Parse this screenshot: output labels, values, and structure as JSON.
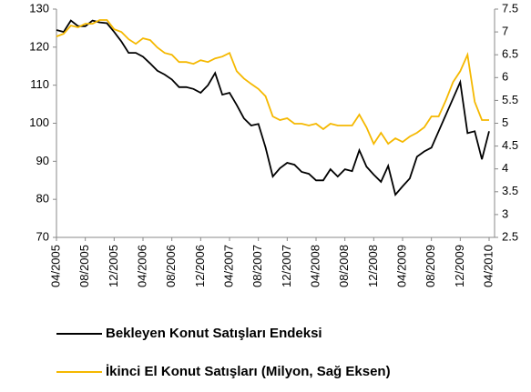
{
  "chart_data": {
    "type": "line",
    "categories": [
      "04/2005",
      null,
      null,
      null,
      "08/2005",
      null,
      null,
      null,
      "12/2005",
      null,
      null,
      null,
      "04/2006",
      null,
      null,
      null,
      "08/2006",
      null,
      null,
      null,
      "12/2006",
      null,
      null,
      null,
      "04/2007",
      null,
      null,
      null,
      "08/2007",
      null,
      null,
      null,
      "12/2007",
      null,
      null,
      null,
      "04/2008",
      null,
      null,
      null,
      "08/2008",
      null,
      null,
      null,
      "12/2008",
      null,
      null,
      null,
      "04/2009",
      null,
      null,
      null,
      "08/2009",
      null,
      null,
      null,
      "12/2009",
      null,
      null,
      null,
      "04/2010"
    ],
    "series": [
      {
        "name": "Bekleyen Konut Satışları Endeksi",
        "color": "#000000",
        "axis": "y",
        "values": [
          124.5,
          124,
          127,
          125.5,
          125.5,
          127,
          126.5,
          126.3,
          124,
          121.5,
          118.5,
          118.5,
          117.5,
          115.7,
          113.8,
          112.8,
          111.5,
          109.5,
          109.5,
          109,
          108,
          110,
          113.2,
          107.5,
          108,
          104.8,
          101.3,
          99.4,
          99.8,
          93.6,
          86,
          88.2,
          89.6,
          89.1,
          87.2,
          86.7,
          85,
          85,
          87.9,
          86,
          87.9,
          87.4,
          92.9,
          88.6,
          86.5,
          84.6,
          88.8,
          81.2,
          83.4,
          85.5,
          91.2,
          92.6,
          93.6,
          97.9,
          102.2,
          106.5,
          110.8,
          97.4,
          97.9,
          90.5,
          97.9
        ]
      },
      {
        "name": "İkinci El Konut Satışları (Milyon, Sağ Eksen)",
        "color": "#f5b800",
        "axis": "y2",
        "values": [
          6.9,
          6.96,
          7.14,
          7.1,
          7.18,
          7.18,
          7.26,
          7.26,
          7.06,
          7.0,
          6.84,
          6.74,
          6.86,
          6.82,
          6.66,
          6.54,
          6.5,
          6.34,
          6.34,
          6.3,
          6.38,
          6.34,
          6.42,
          6.46,
          6.54,
          6.14,
          5.98,
          5.86,
          5.75,
          5.59,
          5.15,
          5.07,
          5.11,
          4.99,
          4.99,
          4.95,
          4.99,
          4.87,
          4.99,
          4.95,
          4.95,
          4.95,
          5.19,
          4.91,
          4.55,
          4.79,
          4.55,
          4.67,
          4.59,
          4.71,
          4.79,
          4.91,
          5.15,
          5.15,
          5.5,
          5.9,
          6.14,
          6.5,
          5.47,
          5.07,
          5.07
        ]
      }
    ],
    "ylim": [
      70,
      130
    ],
    "yticks": [
      70,
      80,
      90,
      100,
      110,
      120,
      130
    ],
    "y2lim": [
      2.5,
      7.5
    ],
    "y2ticks": [
      2.5,
      3,
      3.5,
      4,
      4.5,
      5,
      5.5,
      6,
      6.5,
      7,
      7.5
    ],
    "legend": "bottom"
  }
}
